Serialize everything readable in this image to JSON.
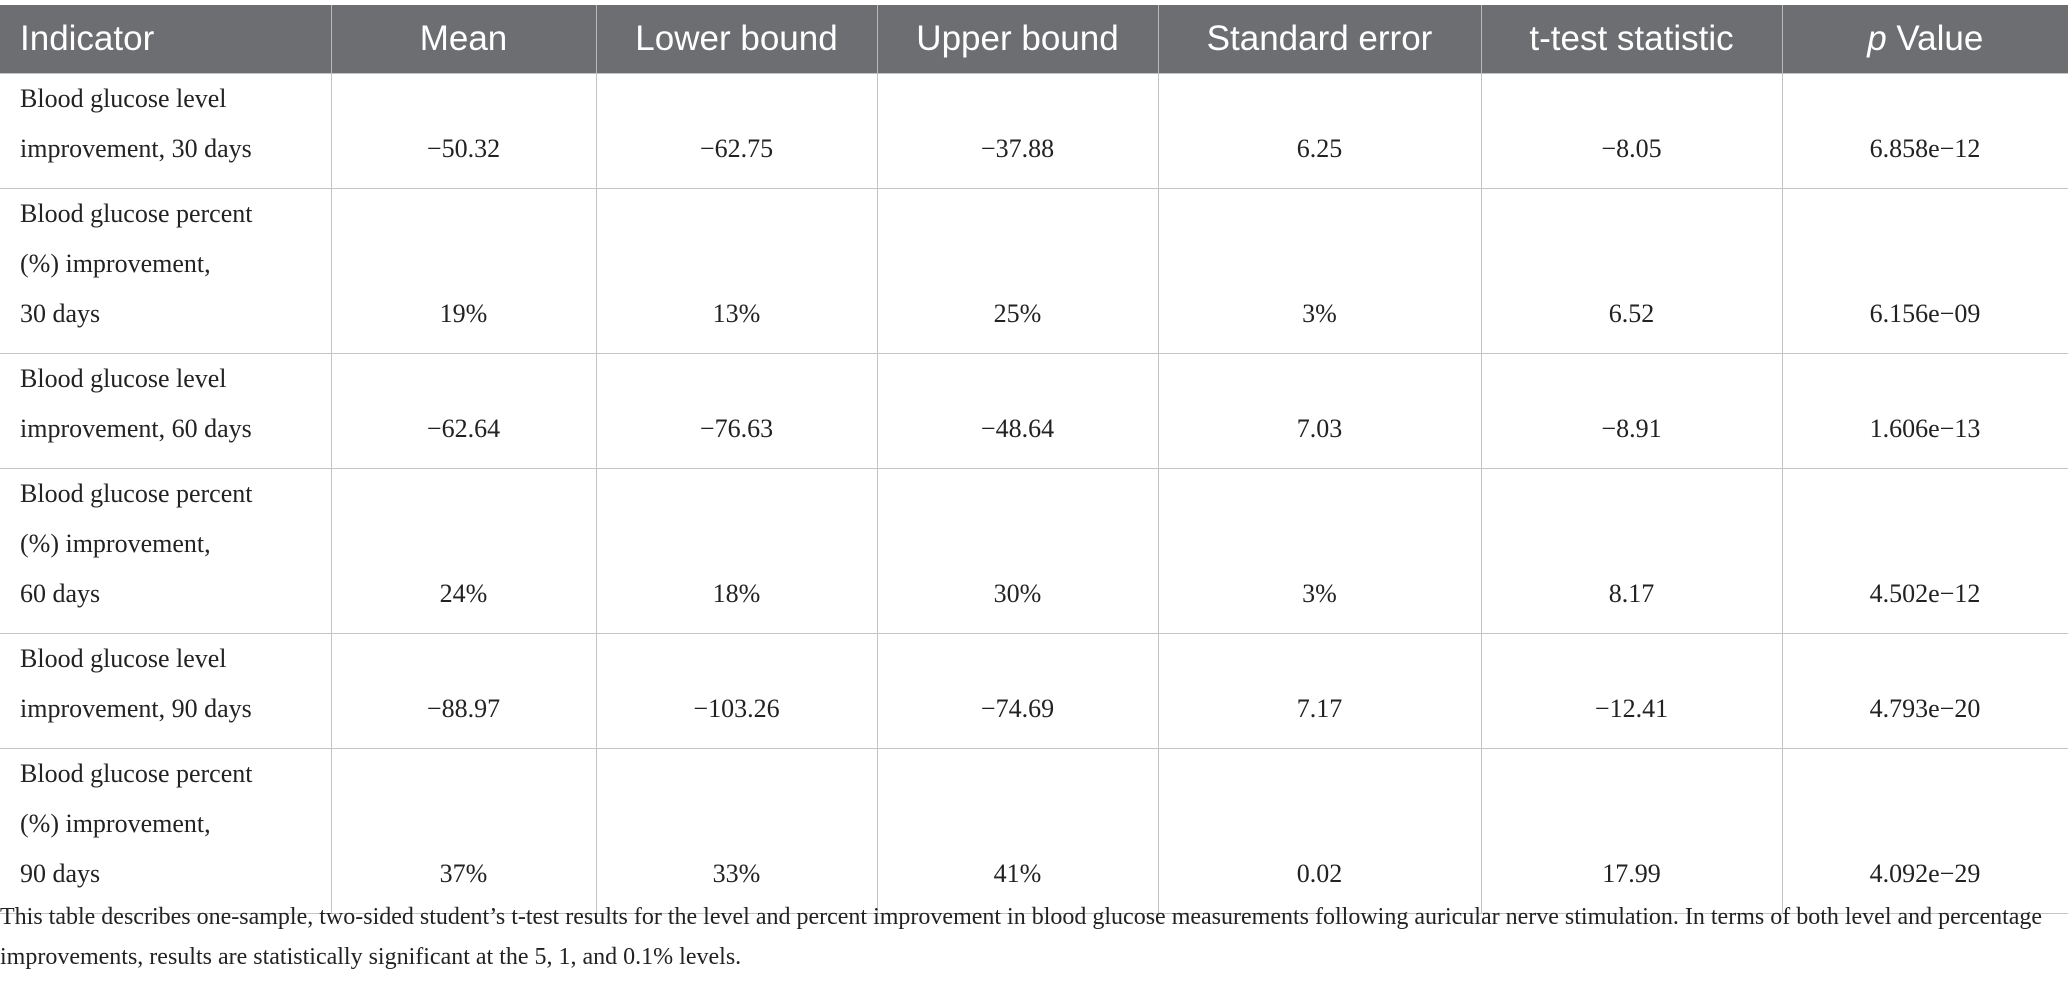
{
  "table": {
    "header": [
      "Indicator",
      "Mean",
      "Lower bound",
      "Upper bound",
      "Standard error",
      "t-test statistic",
      [
        "p",
        "Value"
      ]
    ],
    "rows": [
      [
        [
          "Blood glucose level",
          "improvement, 30 days"
        ],
        "−50.32",
        "−62.75",
        "−37.88",
        "6.25",
        "−8.05",
        "6.858e−12"
      ],
      [
        [
          "Blood glucose percent",
          "(%) improvement,",
          "30 days"
        ],
        "19%",
        "13%",
        "25%",
        "3%",
        "6.52",
        "6.156e−09"
      ],
      [
        [
          "Blood glucose level",
          "improvement, 60 days"
        ],
        "−62.64",
        "−76.63",
        "−48.64",
        "7.03",
        "−8.91",
        "1.606e−13"
      ],
      [
        [
          "Blood glucose percent",
          "(%) improvement,",
          "60 days"
        ],
        "24%",
        "18%",
        "30%",
        "3%",
        "8.17",
        "4.502e−12"
      ],
      [
        [
          "Blood glucose level",
          "improvement, 90 days"
        ],
        "−88.97",
        "−103.26",
        "−74.69",
        "7.17",
        "−12.41",
        "4.793e−20"
      ],
      [
        [
          "Blood glucose percent",
          "(%) improvement,",
          "90 days"
        ],
        "37%",
        "33%",
        "41%",
        "0.02",
        "17.99",
        "4.092e−29"
      ]
    ],
    "footnote": "This table describes one-sample, two-sided student’s t-test results for the level and percent improvement in blood glucose measurements following auricular nerve stimulation. In terms of both level and percentage improvements, results are statistically significant at the 5, 1, and 0.1% levels."
  }
}
